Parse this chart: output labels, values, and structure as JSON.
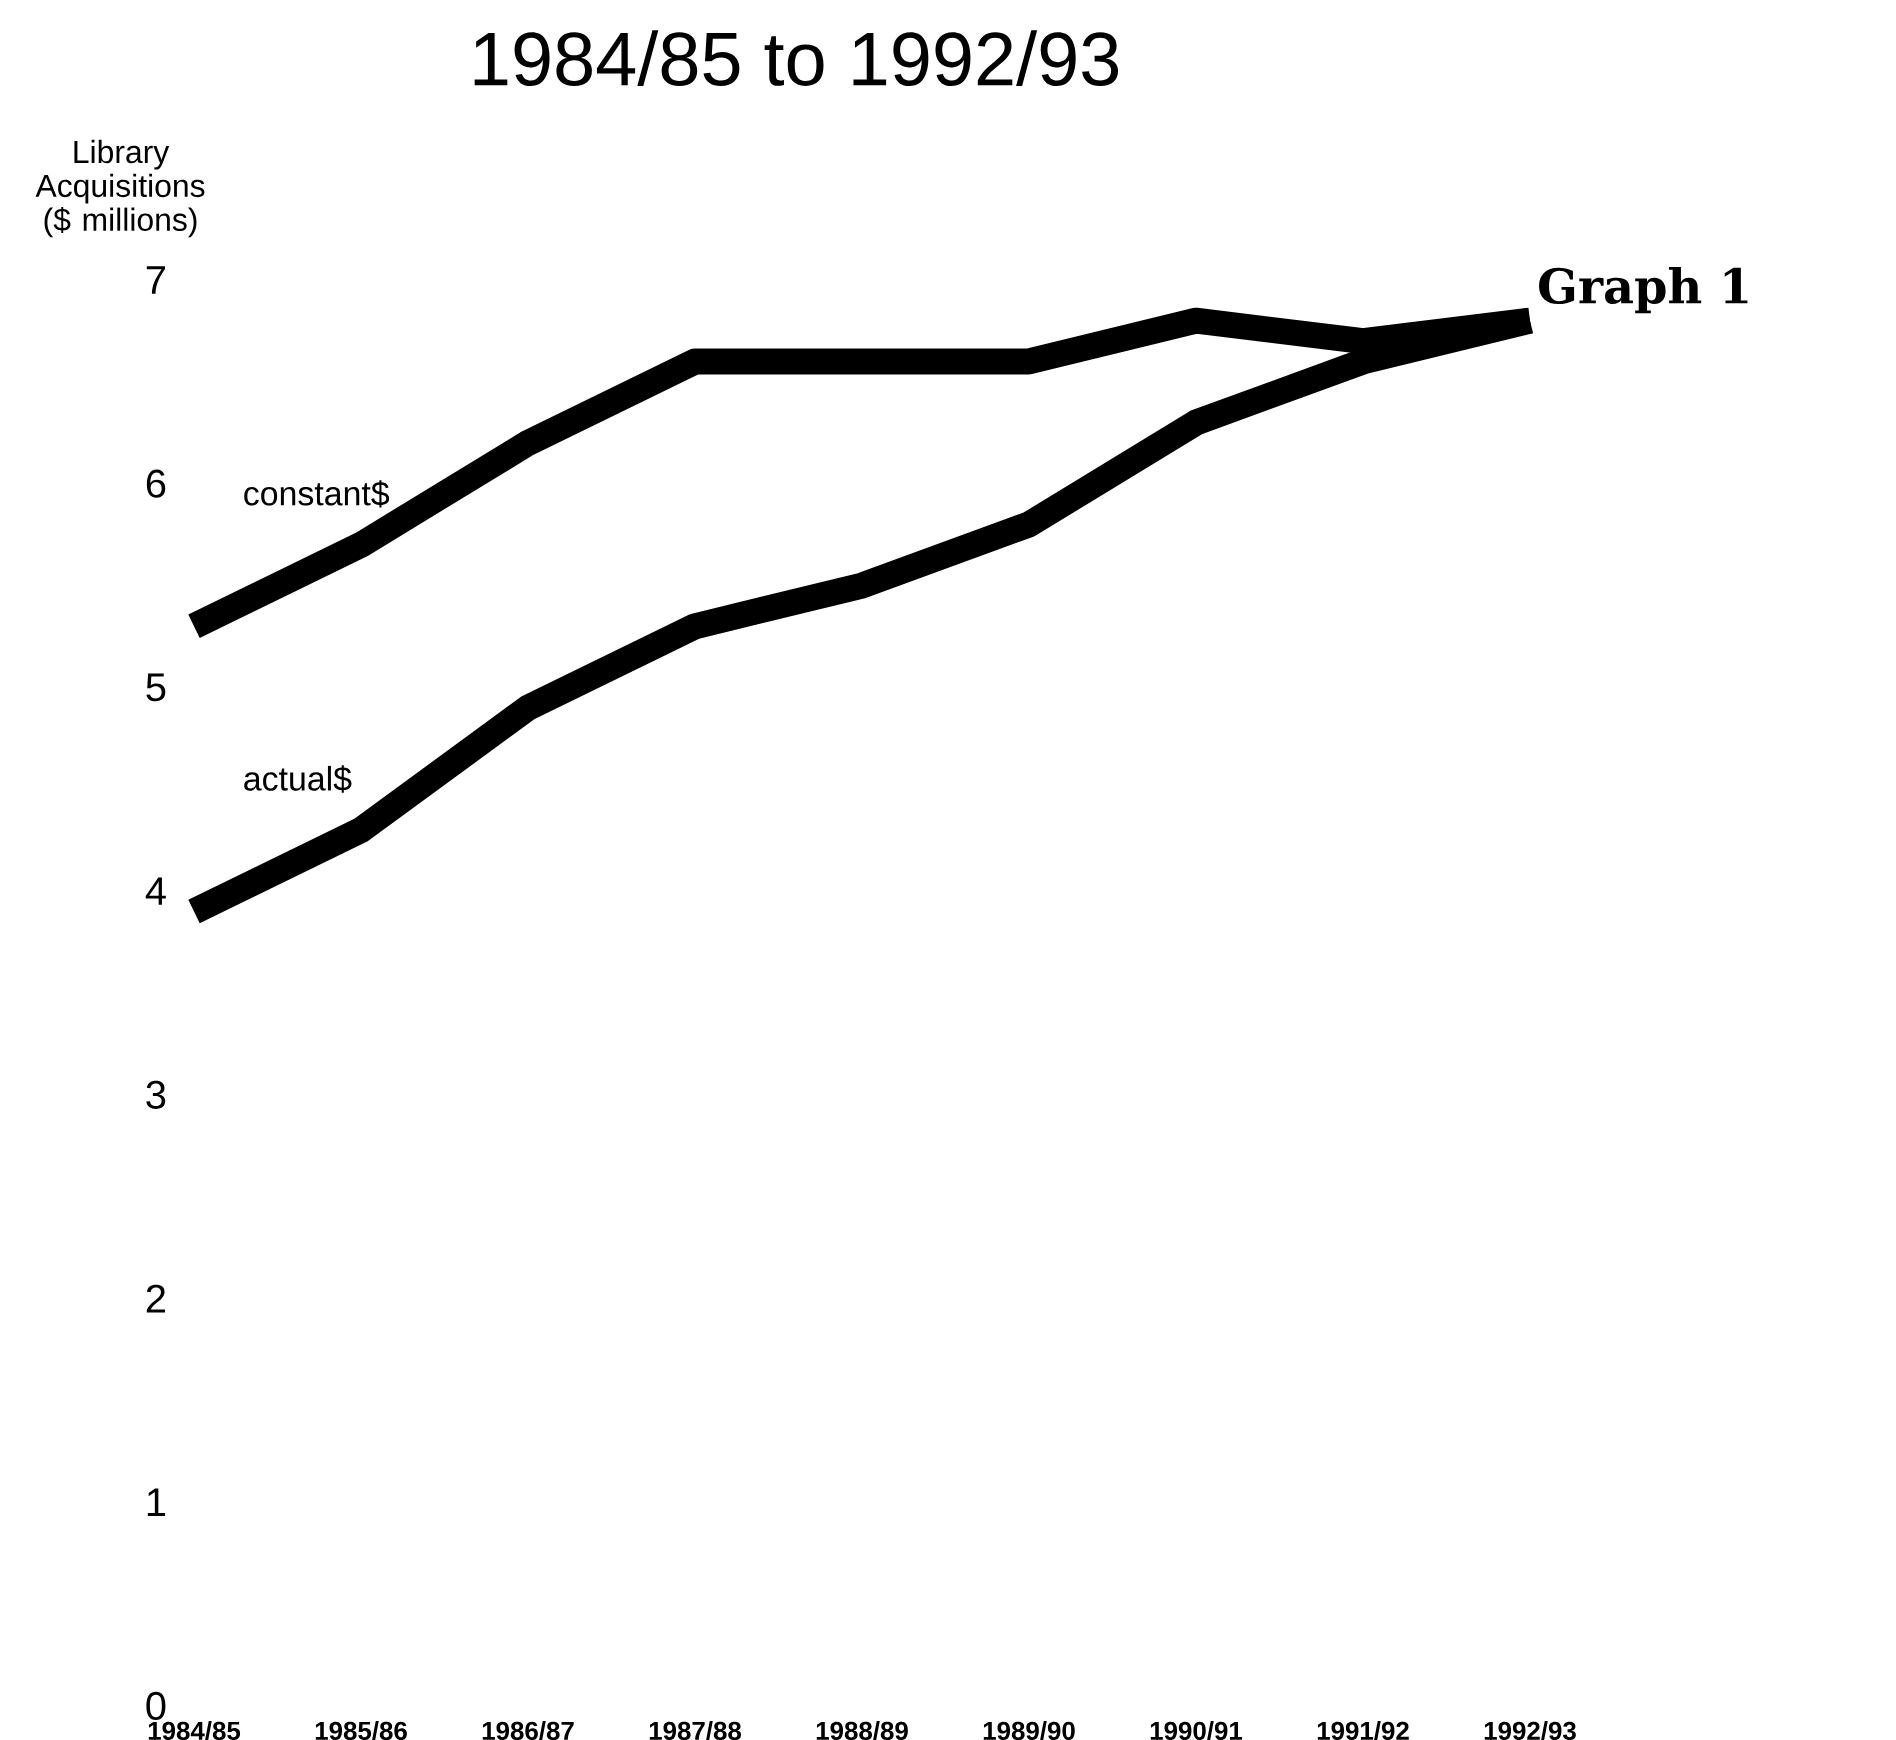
{
  "chart_data": {
    "type": "line",
    "title": "1984/85 to 1992/93",
    "ylabel": "Library Acquisitions ($ millions)",
    "annotations": [
      "Graph 1"
    ],
    "categories": [
      "1984/85",
      "1985/86",
      "1986/87",
      "1987/88",
      "1988/89",
      "1989/90",
      "1990/91",
      "1991/92",
      "1992/93"
    ],
    "ylim": [
      0,
      7
    ],
    "yticks": [
      0,
      1,
      2,
      3,
      4,
      5,
      6,
      7
    ],
    "series": [
      {
        "name": "constant$",
        "color": "#000000",
        "values": [
          5.3,
          5.7,
          6.2,
          6.6,
          6.6,
          6.6,
          6.8,
          6.7,
          6.8
        ]
      },
      {
        "name": "actual$",
        "color": "#000000",
        "values": [
          3.9,
          4.3,
          4.9,
          5.3,
          5.5,
          5.8,
          6.3,
          6.6,
          6.8
        ]
      }
    ],
    "grid": false,
    "legend": false,
    "marker": "none",
    "line_style": "solid"
  }
}
